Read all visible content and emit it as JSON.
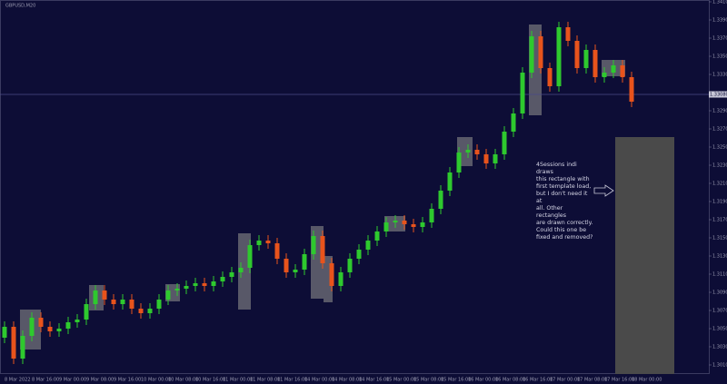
{
  "chart_data": {
    "type": "candlestick",
    "title": "GBPUSD,M20",
    "categories": [
      "8 Mar 2022",
      null,
      null,
      "8 Mar 16:00",
      null,
      null,
      "9 Mar 00:00",
      null,
      null,
      "9 Mar 08:00",
      null,
      null,
      "9 Mar 16:00",
      null,
      null,
      "10 Mar 00:00",
      null,
      null,
      "10 Mar 08:00",
      null,
      null,
      "10 Mar 16:00",
      null,
      null,
      "11 Mar 00:00",
      null,
      null,
      "11 Mar 08:00",
      null,
      null,
      "11 Mar 16:00",
      null,
      null,
      "14 Mar 00:00",
      null,
      null,
      "14 Mar 08:00",
      null,
      null,
      "14 Mar 16:00",
      null,
      null,
      "15 Mar 00:00",
      null,
      null,
      "15 Mar 08:00",
      null,
      null,
      "15 Mar 16:00",
      null,
      null,
      "16 Mar 00:00",
      null,
      null,
      "16 Mar 08:00",
      null,
      null,
      "16 Mar 16:00",
      null,
      null,
      "17 Mar 00:00",
      null,
      null,
      "17 Mar 08:00",
      null,
      null,
      "17 Mar 16:00",
      null,
      null,
      "18 Mar 00:00"
    ],
    "open": [
      1.304,
      1.3052,
      1.3017,
      1.3042,
      1.3062,
      1.3052,
      1.3047,
      1.305,
      1.3057,
      1.306,
      1.3077,
      1.3092,
      1.3082,
      1.3077,
      1.3082,
      1.3072,
      1.3067,
      1.3072,
      1.3082,
      1.3092,
      1.3094,
      1.3097,
      1.31,
      1.3097,
      1.3102,
      1.3107,
      1.3112,
      1.3117,
      1.3142,
      1.3147,
      1.3144,
      1.3127,
      1.3112,
      1.3115,
      1.3132,
      1.3152,
      1.3122,
      1.3097,
      1.3112,
      1.3127,
      1.3137,
      1.3147,
      1.3157,
      1.3167,
      1.3169,
      1.3165,
      1.3162,
      1.3167,
      1.3182,
      1.3202,
      1.3222,
      1.3244,
      1.3247,
      1.3242,
      1.3232,
      1.3242,
      1.3267,
      1.3287,
      1.3332,
      1.3372,
      1.3337,
      1.3317,
      1.3382,
      1.3367,
      1.3337,
      1.3357,
      1.3327,
      1.3332,
      1.334,
      1.3327
    ],
    "high": [
      1.3058,
      1.3058,
      1.3048,
      1.3068,
      1.3068,
      1.3058,
      1.3056,
      1.3063,
      1.3066,
      1.3083,
      1.3098,
      1.3098,
      1.3088,
      1.3088,
      1.3088,
      1.3078,
      1.3078,
      1.3088,
      1.3098,
      1.31,
      1.3103,
      1.3106,
      1.3106,
      1.3108,
      1.3113,
      1.3118,
      1.3123,
      1.3148,
      1.3153,
      1.3153,
      1.315,
      1.3133,
      1.3121,
      1.3138,
      1.3158,
      1.3158,
      1.3128,
      1.3118,
      1.3133,
      1.3143,
      1.3153,
      1.3163,
      1.3173,
      1.3175,
      1.3175,
      1.3171,
      1.3173,
      1.3188,
      1.3208,
      1.3228,
      1.325,
      1.3253,
      1.3253,
      1.3248,
      1.3248,
      1.3273,
      1.3293,
      1.3338,
      1.3378,
      1.3378,
      1.3343,
      1.3388,
      1.3388,
      1.3373,
      1.3363,
      1.3363,
      1.3338,
      1.3346,
      1.3346,
      1.3333
    ],
    "low": [
      1.3034,
      1.3011,
      1.3011,
      1.3036,
      1.3046,
      1.3041,
      1.3041,
      1.3044,
      1.3051,
      1.3054,
      1.3071,
      1.3076,
      1.3071,
      1.3071,
      1.3066,
      1.3061,
      1.3061,
      1.3066,
      1.3076,
      1.3086,
      1.3088,
      1.3091,
      1.3091,
      1.3091,
      1.3096,
      1.3101,
      1.3106,
      1.3111,
      1.3136,
      1.3138,
      1.3121,
      1.3106,
      1.3106,
      1.3109,
      1.3126,
      1.3116,
      1.3091,
      1.3091,
      1.3106,
      1.3121,
      1.3131,
      1.3141,
      1.3151,
      1.3161,
      1.3159,
      1.3156,
      1.3156,
      1.3161,
      1.3176,
      1.3196,
      1.3216,
      1.3238,
      1.3236,
      1.3226,
      1.3226,
      1.3236,
      1.3261,
      1.3281,
      1.3326,
      1.3331,
      1.3311,
      1.3311,
      1.3361,
      1.3331,
      1.3331,
      1.3321,
      1.3321,
      1.3326,
      1.3321,
      1.3294
    ],
    "close": [
      1.3052,
      1.3017,
      1.3042,
      1.3062,
      1.3052,
      1.3047,
      1.305,
      1.3057,
      1.306,
      1.3077,
      1.3092,
      1.3082,
      1.3077,
      1.3082,
      1.3072,
      1.3067,
      1.3072,
      1.3082,
      1.3092,
      1.3094,
      1.3097,
      1.31,
      1.3097,
      1.3102,
      1.3107,
      1.3112,
      1.3117,
      1.3142,
      1.3147,
      1.3144,
      1.3127,
      1.3112,
      1.3115,
      1.3132,
      1.3152,
      1.3122,
      1.3097,
      1.3112,
      1.3127,
      1.3137,
      1.3147,
      1.3157,
      1.3167,
      1.3169,
      1.3165,
      1.3162,
      1.3167,
      1.3182,
      1.3202,
      1.3222,
      1.3244,
      1.3247,
      1.3242,
      1.3232,
      1.3242,
      1.3267,
      1.3287,
      1.3332,
      1.3372,
      1.3337,
      1.3317,
      1.3382,
      1.3367,
      1.3337,
      1.3357,
      1.3327,
      1.3332,
      1.334,
      1.3327,
      1.33
    ],
    "up_color": "#2ec92e",
    "down_color": "#e8531c",
    "ylim": [
      1.3,
      1.3412
    ],
    "yticks": [
      {
        "value": 1.301,
        "label": "1.30100"
      },
      {
        "value": 1.303,
        "label": "1.30300"
      },
      {
        "value": 1.305,
        "label": "1.30500"
      },
      {
        "value": 1.307,
        "label": "1.30700"
      },
      {
        "value": 1.309,
        "label": "1.30900"
      },
      {
        "value": 1.311,
        "label": "1.31100"
      },
      {
        "value": 1.313,
        "label": "1.31300"
      },
      {
        "value": 1.315,
        "label": "1.31500"
      },
      {
        "value": 1.317,
        "label": "1.31700"
      },
      {
        "value": 1.319,
        "label": "1.31900"
      },
      {
        "value": 1.321,
        "label": "1.32100"
      },
      {
        "value": 1.323,
        "label": "1.32300"
      },
      {
        "value": 1.325,
        "label": "1.32500"
      },
      {
        "value": 1.327,
        "label": "1.32700"
      },
      {
        "value": 1.329,
        "label": "1.32900"
      },
      {
        "value": 1.333,
        "label": "1.33300"
      },
      {
        "value": 1.335,
        "label": "1.33500"
      },
      {
        "value": 1.337,
        "label": "1.33700"
      },
      {
        "value": 1.339,
        "label": "1.33900"
      },
      {
        "value": 1.341,
        "label": "1.34100"
      }
    ],
    "price_line": {
      "value": 1.3308,
      "label": "1.33080"
    },
    "annotation": [
      "4Sessions indi draws",
      "this rectangle with",
      "first template load,",
      "but I don't need it at",
      "all. Other rectangles",
      "are drawn correctly.",
      "Could this one be",
      "fixed and removed?"
    ]
  }
}
